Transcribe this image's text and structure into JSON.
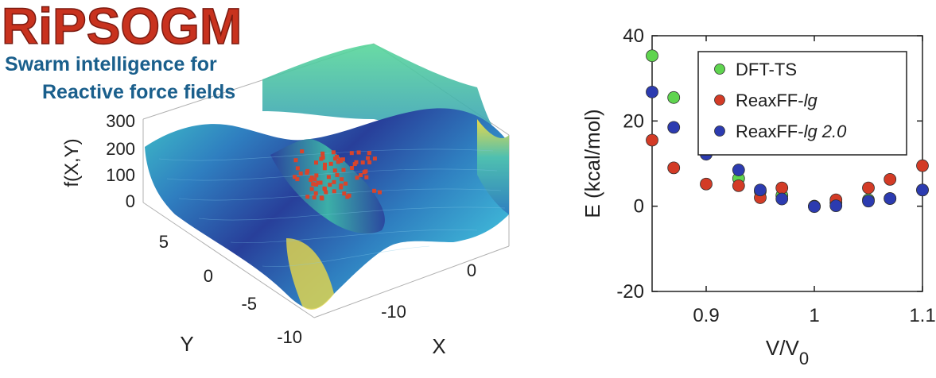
{
  "banner": {
    "title": "RiPSOGM",
    "subtitle_line1": "Swarm intelligence for",
    "subtitle_line2": "Reactive force fields"
  },
  "colors": {
    "title_red": "#c8321e",
    "subtitle_blue": "#1a5f8c",
    "surface_dark": "#2a2f8a",
    "surface_mid": "#2f8fc0",
    "surface_edge": "#e8d84a",
    "particles": "#d9442b",
    "dft": "#5fd44f",
    "reax_lg": "#d33b26",
    "reax_lg2": "#2c3bb0"
  },
  "surface_plot": {
    "zlabel": "f(X,Y)",
    "xlabel": "X",
    "ylabel": "Y",
    "z_ticks": [
      "300",
      "200",
      "100",
      "0"
    ],
    "y_ticks": [
      "5",
      "0",
      "-5",
      "-10"
    ],
    "x_ticks": [
      "-10",
      "0"
    ]
  },
  "chart_data": {
    "type": "scatter",
    "xlabel": "V/V",
    "xlabel_sub": "0",
    "ylabel": "E (kcal/mol)",
    "xlim": [
      0.85,
      1.1
    ],
    "ylim": [
      -20,
      40
    ],
    "x_ticks": [
      0.9,
      1.0,
      1.1
    ],
    "x_tick_labels": [
      "0.9",
      "1",
      "1.1"
    ],
    "y_ticks": [
      -20,
      0,
      20,
      40
    ],
    "y_tick_labels": [
      "-20",
      "0",
      "20",
      "40"
    ],
    "legend_position": "top-right",
    "grid": false,
    "series": [
      {
        "name": "DFT-TS",
        "name_main": "DFT-TS",
        "name_italic": "",
        "name_tail": "",
        "color": "#5fd44f",
        "points": [
          [
            0.85,
            35.3
          ],
          [
            0.87,
            25.5
          ],
          [
            0.9,
            14.5
          ],
          [
            0.93,
            6.5
          ],
          [
            0.95,
            3.5
          ],
          [
            0.97,
            2.5
          ],
          [
            1.0,
            0.0
          ],
          [
            1.02,
            0.8
          ],
          [
            1.05,
            1.5
          ],
          [
            1.07,
            1.8
          ],
          [
            1.1,
            3.8
          ]
        ]
      },
      {
        "name": "ReaxFF-lg",
        "name_main": "ReaxFF-",
        "name_italic": "lg",
        "name_tail": "",
        "color": "#d33b26",
        "points": [
          [
            0.85,
            15.5
          ],
          [
            0.87,
            9.0
          ],
          [
            0.9,
            5.2
          ],
          [
            0.93,
            4.8
          ],
          [
            0.95,
            2.0
          ],
          [
            0.97,
            4.3
          ],
          [
            1.0,
            0.0
          ],
          [
            1.02,
            1.5
          ],
          [
            1.05,
            4.3
          ],
          [
            1.07,
            6.3
          ],
          [
            1.1,
            9.5
          ]
        ]
      },
      {
        "name": "ReaxFF-lg 2.0",
        "name_main": "ReaxFF-",
        "name_italic": "lg",
        "name_tail": " 2.0",
        "color": "#2c3bb0",
        "points": [
          [
            0.85,
            26.8
          ],
          [
            0.87,
            18.5
          ],
          [
            0.9,
            12.2
          ],
          [
            0.93,
            8.5
          ],
          [
            0.95,
            3.8
          ],
          [
            0.97,
            1.7
          ],
          [
            1.0,
            -0.1
          ],
          [
            1.02,
            0.1
          ],
          [
            1.05,
            1.2
          ],
          [
            1.07,
            1.8
          ],
          [
            1.1,
            3.8
          ]
        ]
      }
    ]
  }
}
